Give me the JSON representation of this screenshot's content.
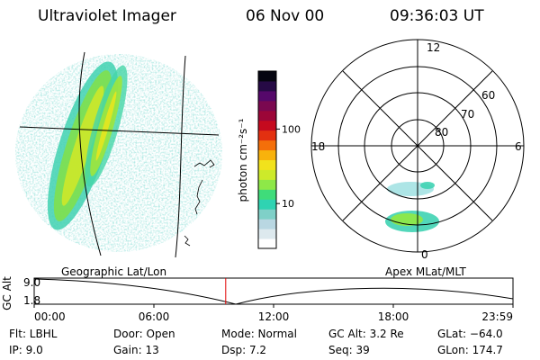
{
  "header": {
    "instrument": "Ultraviolet Imager",
    "date": "06 Nov 00",
    "time": "09:36:03 UT"
  },
  "colorbar": {
    "unit_label": "photon cm⁻²s⁻¹",
    "ticks": [
      {
        "label": "100",
        "value": 100
      },
      {
        "label": "10",
        "value": 10
      }
    ],
    "log_min": 2.5,
    "log_max": 600,
    "colors": [
      "#ffffff",
      "#dde9ee",
      "#b9d7e2",
      "#7fd0c8",
      "#2fd3b2",
      "#3fdc7a",
      "#8ee848",
      "#cdea2a",
      "#f1e21c",
      "#f8b20c",
      "#f46f0a",
      "#e33010",
      "#c50a1e",
      "#9c0638",
      "#7a0850",
      "#55086a",
      "#260a45",
      "#050510"
    ]
  },
  "geo_panel": {
    "label": "Geographic Lat/Lon"
  },
  "polar_panel": {
    "label": "Apex MLat/MLT",
    "mlt_labels": {
      "top": "12",
      "left": "18",
      "right": "6",
      "bottom": "0"
    },
    "lat_labels": [
      "60",
      "70",
      "80"
    ]
  },
  "timeline": {
    "ylabel": "GC Alt",
    "ytick_top": "9.0",
    "ytick_bottom": "1.8",
    "xticks": [
      "00:00",
      "06:00",
      "12:00",
      "18:00",
      "23:59"
    ],
    "current_time_fraction": 0.4
  },
  "info": {
    "filter": "Flt: LBHL",
    "ip": "IP:  9.0",
    "door": "Door: Open",
    "gain": "Gain: 13",
    "mode": "Mode: Normal",
    "dsp": "Dsp:     7.2",
    "gc_alt": "GC Alt: 3.2 Re",
    "seq": "Seq: 39",
    "glat": "GLat: −64.0",
    "glon": "GLon: 174.7"
  }
}
